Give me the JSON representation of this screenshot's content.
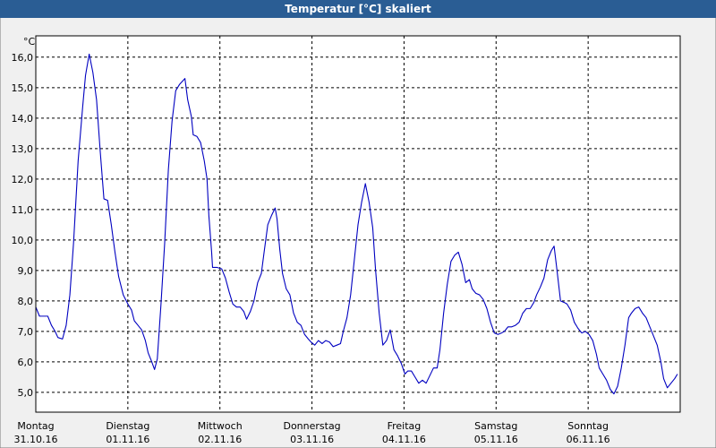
{
  "chart_data": {
    "type": "line",
    "title": "Temperatur [°C] skaliert",
    "y_unit": "°C",
    "xlim": [
      0,
      7
    ],
    "xticks": [
      {
        "value": 0,
        "label": "Montag"
      },
      {
        "value": 1,
        "label": "Dienstag"
      },
      {
        "value": 2,
        "label": "Mittwoch"
      },
      {
        "value": 3,
        "label": "Donnerstag"
      },
      {
        "value": 4,
        "label": "Freitag"
      },
      {
        "value": 5,
        "label": "Samstag"
      },
      {
        "value": 6,
        "label": "Sonntag"
      }
    ],
    "xtick_dates": [
      "31.10.16",
      "01.11.16",
      "02.11.16",
      "03.11.16",
      "04.11.16",
      "05.11.16",
      "06.11.16"
    ],
    "ylim": [
      4.35,
      16.7
    ],
    "yticks": [
      {
        "value": 5,
        "label": "5,0"
      },
      {
        "value": 6,
        "label": "6,0"
      },
      {
        "value": 7,
        "label": "7,0"
      },
      {
        "value": 8,
        "label": "8,0"
      },
      {
        "value": 9,
        "label": "9,0"
      },
      {
        "value": 10,
        "label": "10,0"
      },
      {
        "value": 11,
        "label": "11,0"
      },
      {
        "value": 12,
        "label": "12,0"
      },
      {
        "value": 13,
        "label": "13,0"
      },
      {
        "value": 14,
        "label": "14,0"
      },
      {
        "value": 15,
        "label": "15,0"
      },
      {
        "value": 16,
        "label": "16,0"
      }
    ],
    "grid": true,
    "x": [
      0,
      0.04,
      0.1,
      0.13,
      0.17,
      0.21,
      0.24,
      0.29,
      0.33,
      0.37,
      0.41,
      0.46,
      0.51,
      0.54,
      0.58,
      0.62,
      0.66,
      0.7,
      0.74,
      0.78,
      0.82,
      0.86,
      0.9,
      0.95,
      1.0,
      1.04,
      1.07,
      1.11,
      1.15,
      1.19,
      1.22,
      1.26,
      1.29,
      1.32,
      1.36,
      1.4,
      1.44,
      1.48,
      1.52,
      1.56,
      1.59,
      1.62,
      1.65,
      1.69,
      1.71,
      1.75,
      1.79,
      1.83,
      1.86,
      1.88,
      1.91,
      1.92,
      1.97,
      2.02,
      2.06,
      2.1,
      2.14,
      2.18,
      2.22,
      2.26,
      2.29,
      2.33,
      2.37,
      2.41,
      2.45,
      2.48,
      2.52,
      2.56,
      2.6,
      2.62,
      2.65,
      2.68,
      2.72,
      2.76,
      2.8,
      2.84,
      2.88,
      2.92,
      2.96,
      2.99,
      3.03,
      3.07,
      3.11,
      3.15,
      3.19,
      3.23,
      3.27,
      3.31,
      3.34,
      3.38,
      3.42,
      3.46,
      3.5,
      3.54,
      3.58,
      3.62,
      3.66,
      3.69,
      3.73,
      3.77,
      3.81,
      3.85,
      3.89,
      3.93,
      3.97,
      4.01,
      4.04,
      4.08,
      4.12,
      4.16,
      4.2,
      4.24,
      4.28,
      4.32,
      4.36,
      4.39,
      4.43,
      4.47,
      4.51,
      4.55,
      4.59,
      4.63,
      4.67,
      4.71,
      4.74,
      4.78,
      4.82,
      4.86,
      4.9,
      4.94,
      4.98,
      5.02,
      5.06,
      5.09,
      5.13,
      5.17,
      5.21,
      5.25,
      5.29,
      5.33,
      5.37,
      5.41,
      5.44,
      5.48,
      5.52,
      5.56,
      5.6,
      5.63,
      5.66,
      5.7,
      5.74,
      5.77,
      5.81,
      5.85,
      5.89,
      5.93,
      5.97,
      6.01,
      6.05,
      6.09,
      6.12,
      6.16,
      6.2,
      6.24,
      6.28,
      6.32,
      6.36,
      6.4,
      6.44,
      6.47,
      6.51,
      6.55,
      6.59,
      6.63,
      6.67,
      6.71,
      6.75,
      6.79,
      6.82,
      6.86,
      6.9,
      6.94,
      6.97
    ],
    "series": [
      {
        "color": "#0000c0",
        "values": [
          7.8,
          7.5,
          7.5,
          7.5,
          7.2,
          7.0,
          6.8,
          6.75,
          7.2,
          8.2,
          9.9,
          12.6,
          14.4,
          15.4,
          16.1,
          15.5,
          14.6,
          12.9,
          11.35,
          11.3,
          10.5,
          9.6,
          8.8,
          8.2,
          7.9,
          7.7,
          7.35,
          7.2,
          7.05,
          6.7,
          6.3,
          6.0,
          5.75,
          6.1,
          7.9,
          9.9,
          12.3,
          13.9,
          14.9,
          15.1,
          15.2,
          15.3,
          14.6,
          14.05,
          13.45,
          13.4,
          13.2,
          12.6,
          12.0,
          10.8,
          9.6,
          9.1,
          9.1,
          9.05,
          8.75,
          8.3,
          7.9,
          7.8,
          7.8,
          7.65,
          7.4,
          7.65,
          8.0,
          8.6,
          8.9,
          9.6,
          10.5,
          10.8,
          11.05,
          10.7,
          9.7,
          8.9,
          8.4,
          8.2,
          7.6,
          7.3,
          7.2,
          6.9,
          6.75,
          6.65,
          6.55,
          6.7,
          6.6,
          6.7,
          6.65,
          6.5,
          6.55,
          6.6,
          7.0,
          7.45,
          8.2,
          9.35,
          10.5,
          11.25,
          11.85,
          11.25,
          10.4,
          9.05,
          7.6,
          6.55,
          6.7,
          7.05,
          6.4,
          6.2,
          5.95,
          5.6,
          5.7,
          5.7,
          5.5,
          5.3,
          5.4,
          5.3,
          5.55,
          5.8,
          5.8,
          6.4,
          7.6,
          8.55,
          9.3,
          9.5,
          9.6,
          9.2,
          8.6,
          8.7,
          8.4,
          8.25,
          8.2,
          8.05,
          7.75,
          7.3,
          6.95,
          6.9,
          6.95,
          7.0,
          7.15,
          7.15,
          7.2,
          7.3,
          7.6,
          7.75,
          7.75,
          7.95,
          8.2,
          8.45,
          8.75,
          9.35,
          9.65,
          9.8,
          9.05,
          8.0,
          7.95,
          7.9,
          7.7,
          7.3,
          7.1,
          6.95,
          7.0,
          6.9,
          6.7,
          6.25,
          5.8,
          5.6,
          5.4,
          5.1,
          4.95,
          5.2,
          5.8,
          6.55,
          7.45,
          7.6,
          7.75,
          7.8,
          7.6,
          7.45,
          7.15,
          6.85,
          6.55,
          6.0,
          5.45,
          5.15,
          5.3,
          5.45,
          5.6
        ]
      }
    ]
  }
}
